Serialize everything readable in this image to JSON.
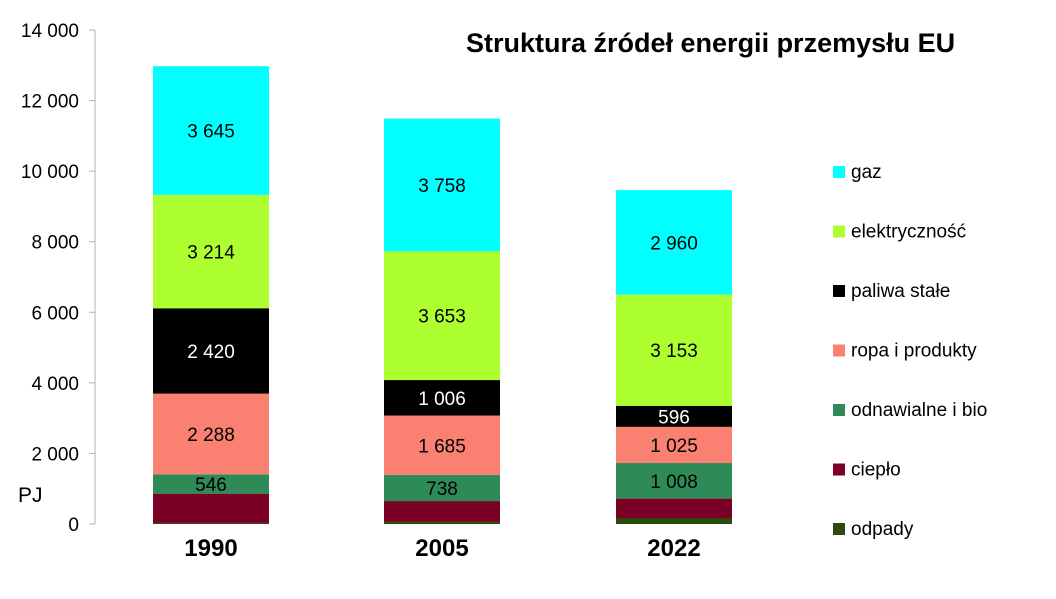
{
  "chart_data": {
    "type": "bar",
    "stacked": true,
    "title": "Struktura źródeł energii przemysłu EU",
    "ylabel": "PJ",
    "xlabel": "",
    "ylim": [
      0,
      14000
    ],
    "yticks": [
      0,
      2000,
      4000,
      6000,
      8000,
      10000,
      12000,
      14000
    ],
    "ytick_labels": [
      "0",
      "2 000",
      "4 000",
      "6 000",
      "8 000",
      "10 000",
      "12 000",
      "14 000"
    ],
    "grid": false,
    "legend_position": "right",
    "categories": [
      "1990",
      "2005",
      "2022"
    ],
    "series": [
      {
        "name": "odpady",
        "color": "#2f4a0c",
        "values": [
          30,
          60,
          170
        ],
        "labels": [
          "",
          "",
          ""
        ]
      },
      {
        "name": "ciepło",
        "color": "#7a0026",
        "values": [
          830,
          590,
          550
        ],
        "labels": [
          "",
          "",
          ""
        ]
      },
      {
        "name": "odnawialne i bio",
        "color": "#2e8b57",
        "values": [
          546,
          738,
          1008
        ],
        "labels": [
          "546",
          "738",
          "1 008"
        ]
      },
      {
        "name": "ropa i produkty",
        "color": "#fa8072",
        "values": [
          2288,
          1685,
          1025
        ],
        "labels": [
          "2 288",
          "1 685",
          "1 025"
        ]
      },
      {
        "name": "paliwa stałe",
        "color": "#000000",
        "values": [
          2420,
          1006,
          596
        ],
        "labels": [
          "2 420",
          "1 006",
          "596"
        ]
      },
      {
        "name": "elektryczność",
        "color": "#adff2f",
        "values": [
          3214,
          3653,
          3153
        ],
        "labels": [
          "3 214",
          "3 653",
          "3 153"
        ]
      },
      {
        "name": "gaz",
        "color": "#00ffff",
        "values": [
          3645,
          3758,
          2960
        ],
        "labels": [
          "3 645",
          "3 758",
          "2 960"
        ]
      }
    ]
  }
}
